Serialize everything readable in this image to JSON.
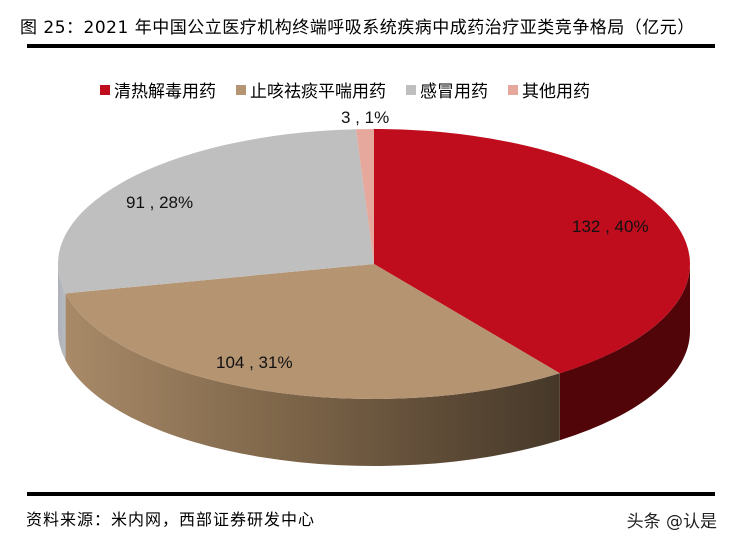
{
  "header": {
    "title": "图 25：2021 年中国公立医疗机构终端呼吸系统疾病中成药治疗亚类竞争格局（亿元）"
  },
  "footer": {
    "source": "资料来源：米内网，西部证券研发中心",
    "watermark": "头条 @认是"
  },
  "legend": [
    {
      "label": "清热解毒用药",
      "color": "#c00d1e"
    },
    {
      "label": "止咳祛痰平喘用药",
      "color": "#b59471"
    },
    {
      "label": "感冒用药",
      "color": "#bfbfbf"
    },
    {
      "label": "其他用药",
      "color": "#e6a89d"
    }
  ],
  "chart_data": {
    "type": "pie",
    "title": "2021 年中国公立医疗机构终端呼吸系统疾病中成药治疗亚类竞争格局（亿元）",
    "categories": [
      "清热解毒用药",
      "止咳祛痰平喘用药",
      "感冒用药",
      "其他用药"
    ],
    "values": [
      132,
      104,
      91,
      3
    ],
    "percentages": [
      40,
      31,
      28,
      1
    ],
    "data_labels": [
      "132 , 40%",
      "104 , 31%",
      "91 , 28%",
      "3 , 1%"
    ],
    "colors": [
      "#c00d1e",
      "#b59471",
      "#bfbfbf",
      "#e6a89d"
    ],
    "side_colors": [
      "#520508",
      "#4a3b2c",
      "#a8acb1",
      "#c99088"
    ],
    "legend_position": "top",
    "style": "3d-pie",
    "start_angle": "12 o'clock, clockwise",
    "unit": "亿元"
  }
}
